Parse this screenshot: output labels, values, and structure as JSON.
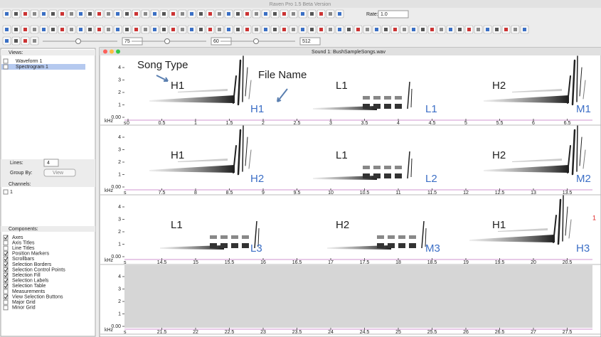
{
  "window": {
    "title": "Raven Pro 1.5 Beta Version"
  },
  "toolbar": {
    "rate_label": "Rate:",
    "rate": "1.0",
    "slider_1": "75",
    "slider_2": "60",
    "slider_3": "512"
  },
  "side_panel": {
    "views": {
      "title": "Views:",
      "items": [
        "Waveform 1",
        "Spectrogram 1"
      ]
    },
    "lines_label": "Lines:",
    "lines": "4",
    "group_by_label": "Group By:",
    "group_by": "View",
    "channels": {
      "title": "Channels:",
      "items": [
        "1"
      ]
    },
    "components": {
      "title": "Components:",
      "items": [
        {
          "label": "Axes",
          "checked": true
        },
        {
          "label": "Axis Titles",
          "checked": false
        },
        {
          "label": "Line Titles",
          "checked": false
        },
        {
          "label": "Position Markers",
          "checked": true
        },
        {
          "label": "Scrollbars",
          "checked": true
        },
        {
          "label": "Selection Borders",
          "checked": true
        },
        {
          "label": "Selection Control Points",
          "checked": true
        },
        {
          "label": "Selection Fill",
          "checked": true
        },
        {
          "label": "Selection Labels",
          "checked": true
        },
        {
          "label": "Selection Table",
          "checked": true
        },
        {
          "label": "Measurements",
          "checked": false
        },
        {
          "label": "View Selection Buttons",
          "checked": true
        },
        {
          "label": "Major Grid",
          "checked": false
        },
        {
          "label": "Minor Grid",
          "checked": false
        }
      ]
    }
  },
  "sound_window": {
    "title": "Sound 1: BushSampleSongs.wav",
    "y_unit": "kHz",
    "x_unit": "s",
    "yticks": [
      "0.00",
      "1",
      "2",
      "3",
      "4"
    ],
    "annotations": {
      "song_type": "Song Type",
      "file_name": "File Name"
    },
    "channel_marker": "1",
    "rows": [
      {
        "xticks": [
          "0",
          "0.5",
          "1",
          "1.5",
          "2",
          "2.5",
          "3",
          "3.5",
          "4",
          "4.5",
          "5",
          "5.5",
          "6",
          "6.5"
        ],
        "song_types": [
          "H1",
          "L1",
          "H2"
        ],
        "file_names": [
          "H1",
          "L1",
          "M1"
        ]
      },
      {
        "xticks": [
          "7.5",
          "8",
          "8.5",
          "9",
          "9.5",
          "10",
          "10.5",
          "11",
          "11.5",
          "12",
          "12.5",
          "13",
          "13.5"
        ],
        "song_types": [
          "H1",
          "L1",
          "H2"
        ],
        "file_names": [
          "H2",
          "L2",
          "M2"
        ]
      },
      {
        "xticks": [
          "14.5",
          "15",
          "15.5",
          "16",
          "16.5",
          "17",
          "17.5",
          "18",
          "18.5",
          "19",
          "19.5",
          "20",
          "20.5"
        ],
        "song_types": [
          "L1",
          "H2",
          "H1"
        ],
        "file_names": [
          "L3",
          "M3",
          "H3"
        ]
      },
      {
        "xticks": [
          "21.5",
          "22",
          "22.5",
          "23",
          "23.5",
          "24",
          "24.5",
          "25",
          "25.5",
          "26",
          "26.5",
          "27",
          "27.5"
        ]
      }
    ]
  }
}
